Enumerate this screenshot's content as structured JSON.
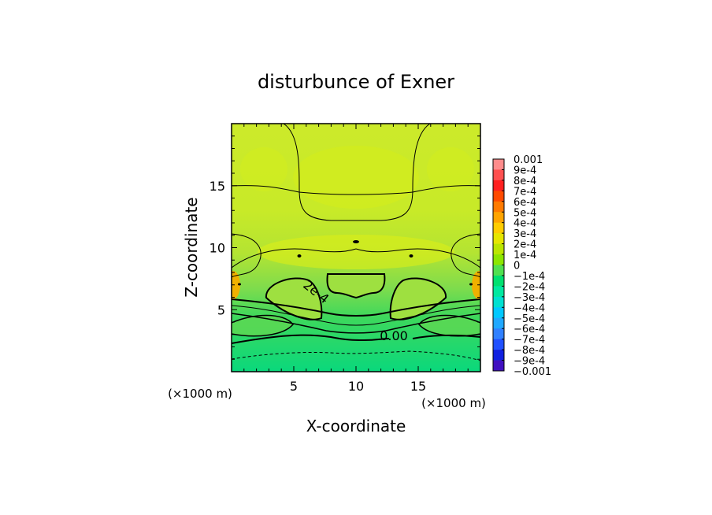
{
  "chart_data": {
    "type": "heatmap",
    "title": "disturbunce of Exner",
    "xlabel": "X-coordinate",
    "ylabel": "Z-coordinate",
    "xunit": "(×1000 m)",
    "yunit": "(×1000 m)",
    "xlim": [
      0,
      20
    ],
    "ylim": [
      0,
      20
    ],
    "xticks": [
      {
        "v": 5,
        "label": "5"
      },
      {
        "v": 10,
        "label": "10"
      },
      {
        "v": 15,
        "label": "15"
      }
    ],
    "yticks": [
      {
        "v": 5,
        "label": "5"
      },
      {
        "v": 10,
        "label": "10"
      },
      {
        "v": 15,
        "label": "15"
      }
    ],
    "contour_labels": [
      "2e-4",
      "0.00"
    ],
    "colorbar": {
      "levels": [
        "0.001",
        "9e-4",
        "8e-4",
        "7e-4",
        "6e-4",
        "5e-4",
        "4e-4",
        "3e-4",
        "2e-4",
        "1e-4",
        "0",
        "−1e-4",
        "−2e-4",
        "−3e-4",
        "−4e-4",
        "−5e-4",
        "−6e-4",
        "−7e-4",
        "−8e-4",
        "−9e-4",
        "−0.001"
      ],
      "colors": [
        "#ff8c8c",
        "#ff5050",
        "#ff2020",
        "#ff4a00",
        "#ff7a00",
        "#ffa400",
        "#ffcc00",
        "#e6e600",
        "#bbe600",
        "#8ce600",
        "#50e050",
        "#00e070",
        "#00e8a0",
        "#00e0d0",
        "#00c8ff",
        "#20a8ff",
        "#3080ff",
        "#2050ff",
        "#1020e0",
        "#4010c0"
      ]
    }
  }
}
